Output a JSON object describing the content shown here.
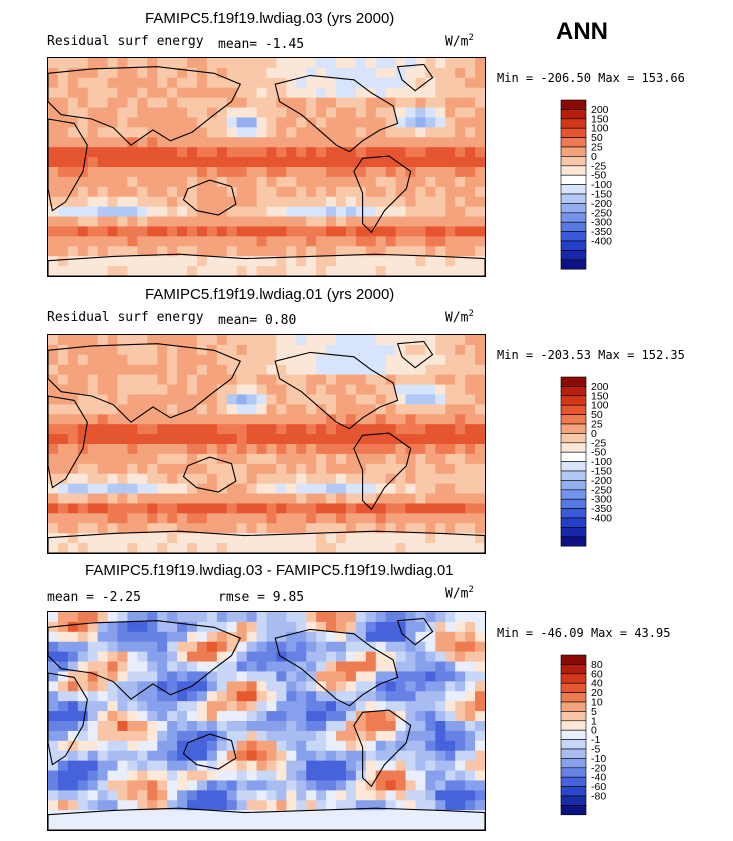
{
  "season": "ANN",
  "palettes": {
    "main": [
      "#fbe7d8",
      "#f8c8a8",
      "#f4a37c",
      "#ef7a52",
      "#e55530",
      "#d03818",
      "#b81e0e",
      "#8a0a06",
      "#ffffff",
      "#d7e4fb",
      "#b2c8f5",
      "#93aff0",
      "#7394ea",
      "#5778e3",
      "#3b59d8",
      "#2540c8",
      "#1828a8",
      "#0c1284"
    ],
    "diff_pos": [
      "#fde7d6",
      "#f8c6a6",
      "#f4a37c",
      "#ee7c52",
      "#e7582f",
      "#d4381a",
      "#b51e0e",
      "#8a0a06"
    ],
    "diff_neg": [
      "#e8eefc",
      "#c8d6f8",
      "#a8bcf2",
      "#87a0ec",
      "#6682e4",
      "#4763db",
      "#2c46cc",
      "#192ea6",
      "#0c1284"
    ]
  },
  "chart_data": [
    {
      "type": "heatmap",
      "title": "FAMIPC5.f19f19.lwdiag.03 (yrs 2000)",
      "left_label": "Residual surf energy",
      "mean_label": "mean=",
      "mean_value": "-1.45",
      "units": "W/m",
      "units_exp": "2",
      "min_label": "Min =",
      "min_value": "-206.50",
      "max_label": "Max =",
      "max_value": "153.66",
      "colorbar_ticks": [
        "200",
        "150",
        "100",
        "50",
        "25",
        "0",
        "-25",
        "-50",
        "-100",
        "-150",
        "-200",
        "-250",
        "-300",
        "-350",
        "-400"
      ],
      "colorbar_colors": [
        "#8a0a06",
        "#b81e0e",
        "#d03818",
        "#e55530",
        "#ef7a52",
        "#f4a37c",
        "#f8c8a8",
        "#fbe7d8",
        "#ffffff",
        "#d7e4fb",
        "#b2c8f5",
        "#93aff0",
        "#7394ea",
        "#5778e3",
        "#3b59d8",
        "#2540c8",
        "#1828a8",
        "#0c1284"
      ]
    },
    {
      "type": "heatmap",
      "title": "FAMIPC5.f19f19.lwdiag.01 (yrs 2000)",
      "left_label": "Residual surf energy",
      "mean_label": "mean=",
      "mean_value": "0.80",
      "units": "W/m",
      "units_exp": "2",
      "min_label": "Min =",
      "min_value": "-203.53",
      "max_label": "Max =",
      "max_value": "152.35",
      "colorbar_ticks": [
        "200",
        "150",
        "100",
        "50",
        "25",
        "0",
        "-25",
        "-50",
        "-100",
        "-150",
        "-200",
        "-250",
        "-300",
        "-350",
        "-400"
      ],
      "colorbar_colors": [
        "#8a0a06",
        "#b81e0e",
        "#d03818",
        "#e55530",
        "#ef7a52",
        "#f4a37c",
        "#f8c8a8",
        "#fbe7d8",
        "#ffffff",
        "#d7e4fb",
        "#b2c8f5",
        "#93aff0",
        "#7394ea",
        "#5778e3",
        "#3b59d8",
        "#2540c8",
        "#1828a8",
        "#0c1284"
      ]
    },
    {
      "type": "heatmap",
      "title": "FAMIPC5.f19f19.lwdiag.03 - FAMIPC5.f19f19.lwdiag.01",
      "mean_label": "mean =",
      "mean_value": "-2.25",
      "rmse_label": "rmse =",
      "rmse_value": "9.85",
      "units": "W/m",
      "units_exp": "2",
      "min_label": "Min =",
      "min_value": "-46.09",
      "max_label": "Max =",
      "max_value": "43.95",
      "colorbar_ticks": [
        "80",
        "60",
        "40",
        "20",
        "10",
        "5",
        "1",
        "0",
        "-1",
        "-5",
        "-10",
        "-20",
        "-40",
        "-60",
        "-80"
      ],
      "colorbar_colors": [
        "#8a0a06",
        "#b51e0e",
        "#d4381a",
        "#e7582f",
        "#ee7c52",
        "#f4a37c",
        "#f8c6a6",
        "#fde7d6",
        "#e8eefc",
        "#c8d6f8",
        "#a8bcf2",
        "#87a0ec",
        "#6682e4",
        "#4763db",
        "#2c46cc",
        "#192ea6",
        "#0c1284"
      ]
    }
  ]
}
